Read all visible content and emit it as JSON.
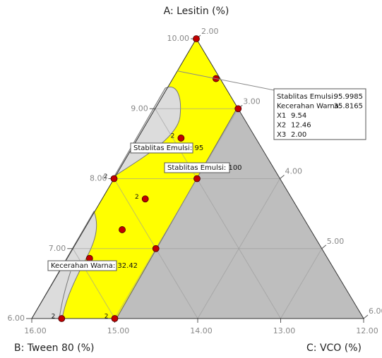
{
  "chart_data": {
    "type": "ternary",
    "a_label": "A: Lesitin (%)",
    "b_label": "B: Tween 80 (%)",
    "c_label": "C: VCO (%)",
    "a_lim": [
      6,
      10
    ],
    "b_lim": [
      12,
      16
    ],
    "c_lim": [
      2,
      6
    ],
    "a_ticks": [
      {
        "value": 6,
        "label": "6.00"
      },
      {
        "value": 7,
        "label": "7.00"
      },
      {
        "value": 8,
        "label": "8.00"
      },
      {
        "value": 9,
        "label": "9.00"
      },
      {
        "value": 10,
        "label": "10.00"
      }
    ],
    "b_ticks": [
      {
        "value": 16,
        "label": "16.00"
      },
      {
        "value": 15,
        "label": "15.00"
      },
      {
        "value": 14,
        "label": "14.00"
      },
      {
        "value": 13,
        "label": "13.00"
      },
      {
        "value": 12,
        "label": "12.00"
      }
    ],
    "c_ticks": [
      {
        "value": 2,
        "label": "2.00"
      },
      {
        "value": 3,
        "label": "3.00"
      },
      {
        "value": 4,
        "label": "4.00"
      },
      {
        "value": 5,
        "label": "5.00"
      },
      {
        "value": 6,
        "label": "6.00"
      }
    ],
    "grid": true,
    "point_color": "#c00000",
    "points": {
      "a": [
        10,
        9.43,
        9,
        8.58,
        8,
        8,
        7.71,
        7.27,
        7,
        6.86,
        6,
        6
      ],
      "b": [
        12,
        12.05,
        12,
        12.9,
        14,
        13,
        13.77,
        14.27,
        14,
        14.87,
        15.64,
        15
      ],
      "c": [
        2,
        2.52,
        3,
        2.52,
        2,
        3,
        2.52,
        2.46,
        3,
        2.27,
        2.36,
        3
      ],
      "replicates": [
        null,
        null,
        null,
        2,
        2,
        null,
        2,
        null,
        null,
        null,
        2,
        2
      ]
    },
    "annotations": [
      "Stablitas Emulsi: 95",
      "Stablitas Emulsi: 100",
      "Kecerahan Warna: 32.42"
    ],
    "flag": {
      "a": 9.54,
      "b": 12.46,
      "c": 2,
      "rows": [
        {
          "label": "Stablitas Emulsi:",
          "value": 95.9985
        },
        {
          "label": "Kecerahan Warna:",
          "value": 35.8165
        },
        {
          "label": "X1",
          "value": 9.54
        },
        {
          "label": "X2",
          "value": 12.46
        },
        {
          "label": "X3",
          "value": 2,
          "value_label": "2.00"
        }
      ]
    }
  }
}
